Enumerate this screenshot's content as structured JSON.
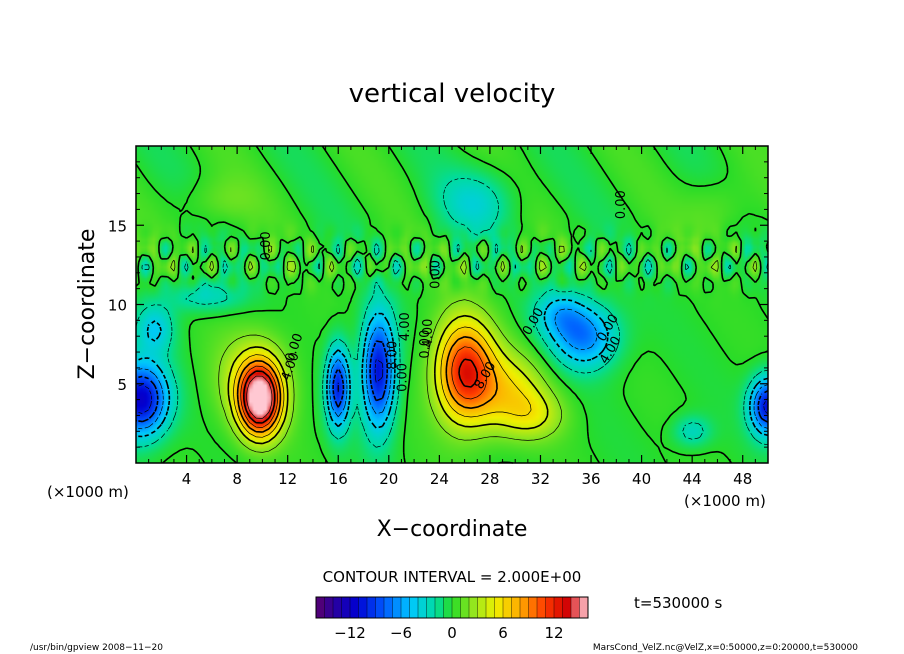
{
  "chart_data": {
    "type": "heatmap",
    "title": "vertical velocity",
    "xlabel": "X−coordinate",
    "ylabel": "Z−coordinate",
    "x_unit_left": "(×1000 m)",
    "x_unit_right": "(×1000 m)",
    "xlim": [
      0,
      50
    ],
    "ylim": [
      0,
      20
    ],
    "x_ticks": [
      4,
      8,
      12,
      16,
      20,
      24,
      28,
      32,
      36,
      40,
      44,
      48
    ],
    "y_ticks": [
      5,
      10,
      15
    ],
    "contour_interval_text": "CONTOUR INTERVAL = 2.000E+00",
    "contour_labels": [
      {
        "text": "0.00",
        "x": 12.8,
        "y": 7.2,
        "rot": -70
      },
      {
        "text": "4.00",
        "x": 12.5,
        "y": 6.0,
        "rot": -70
      },
      {
        "text": "8.00",
        "x": 20.6,
        "y": 6.8,
        "rot": -90
      },
      {
        "text": "4.00",
        "x": 21.6,
        "y": 8.6,
        "rot": -90
      },
      {
        "text": "0.00",
        "x": 21.4,
        "y": 5.4,
        "rot": -90
      },
      {
        "text": "0.00",
        "x": 23.2,
        "y": 7.5,
        "rot": -90
      },
      {
        "text": "4.00",
        "x": 23.4,
        "y": 8.2,
        "rot": -90
      },
      {
        "text": "0.00",
        "x": 24.0,
        "y": 11.9,
        "rot": -90
      },
      {
        "text": "8.00",
        "x": 27.9,
        "y": 5.4,
        "rot": -60
      },
      {
        "text": "0.00",
        "x": 31.7,
        "y": 8.8,
        "rot": -60
      },
      {
        "text": "0.00",
        "x": 37.6,
        "y": 8.4,
        "rot": -60
      },
      {
        "text": "4.00",
        "x": 37.8,
        "y": 7.0,
        "rot": -60
      },
      {
        "text": "0.00",
        "x": 38.7,
        "y": 16.3,
        "rot": -90
      },
      {
        "text": "0.00",
        "x": 10.6,
        "y": 13.7,
        "rot": -90
      }
    ],
    "features": [
      {
        "x": 9.8,
        "z": 4.0,
        "amp": 16,
        "sx": 1.6,
        "sz": 2.2
      },
      {
        "x": 9.3,
        "z": 5.2,
        "amp": 4,
        "sx": 3.0,
        "sz": 3.0
      },
      {
        "x": 26.0,
        "z": 5.8,
        "amp": 12,
        "sx": 2.3,
        "sz": 3.2
      },
      {
        "x": 29.5,
        "z": 4.5,
        "amp": 5,
        "sx": 3.0,
        "sz": 2.5
      },
      {
        "x": 31.5,
        "z": 3.0,
        "amp": 3,
        "sx": 2.5,
        "sz": 1.5
      },
      {
        "x": 16.0,
        "z": 4.8,
        "amp": -10,
        "sx": 0.9,
        "sz": 2.5
      },
      {
        "x": 19.2,
        "z": 5.8,
        "amp": -11,
        "sx": 1.3,
        "sz": 3.6
      },
      {
        "x": 0.4,
        "z": 4.0,
        "amp": -12,
        "sx": 2.1,
        "sz": 2.3
      },
      {
        "x": 50.0,
        "z": 3.6,
        "amp": -11,
        "sx": 1.4,
        "sz": 1.8
      },
      {
        "x": 35.5,
        "z": 8.0,
        "amp": -7,
        "sx": 2.6,
        "sz": 2.0
      },
      {
        "x": 33.5,
        "z": 9.5,
        "amp": -4,
        "sx": 2.0,
        "sz": 1.5
      },
      {
        "x": 5.5,
        "z": 10.5,
        "amp": -3,
        "sx": 3.0,
        "sz": 1.0
      },
      {
        "x": 27.0,
        "z": 16.5,
        "amp": -3,
        "sx": 3.0,
        "sz": 2.0
      },
      {
        "x": 1.5,
        "z": 8.5,
        "amp": -4,
        "sx": 1.5,
        "sz": 1.5
      },
      {
        "x": 6.5,
        "z": 16.5,
        "amp": 1.5,
        "sx": 3.0,
        "sz": 1.5
      },
      {
        "x": 46.0,
        "z": 16.0,
        "amp": 1.5,
        "sx": 2.5,
        "sz": 2.0
      },
      {
        "x": 44.0,
        "z": 2.0,
        "amp": -3,
        "sx": 1.5,
        "sz": 1.0
      }
    ],
    "colorbar": {
      "vmin": -16,
      "vmax": 16,
      "ticks": [
        -12,
        -6,
        0,
        6,
        12
      ],
      "tick_labels": [
        "−12",
        "−6",
        "0",
        "6",
        "12"
      ]
    }
  },
  "time_label": "t=530000 s",
  "footer_left": "/usr/bin/gpview  2008−11−20",
  "footer_right": "MarsCond_VelZ.nc@VelZ,x=0:50000,z=0:20000,t=530000"
}
